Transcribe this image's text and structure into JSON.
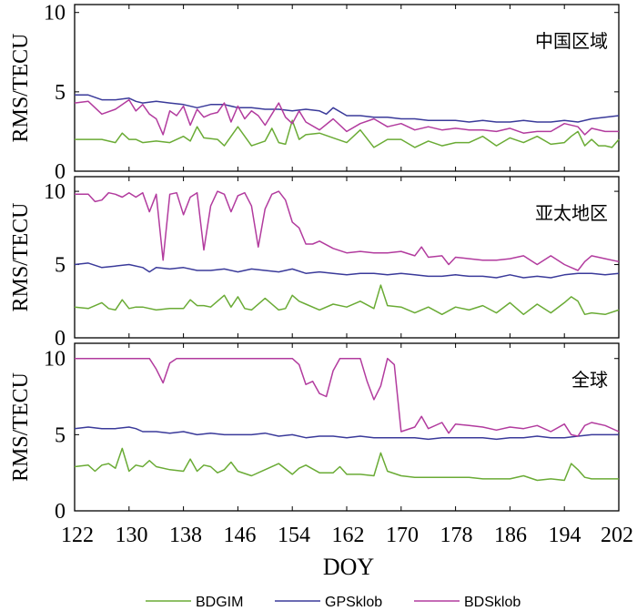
{
  "chart_data": {
    "type": "line",
    "title": "",
    "xlabel": "DOY",
    "xlim": [
      122,
      202
    ],
    "x_ticks": [
      "122",
      "130",
      "138",
      "146",
      "154",
      "162",
      "170",
      "178",
      "186",
      "194",
      "202"
    ],
    "legend": {
      "placement": "bottom",
      "entries": [
        {
          "name": "BDGIM",
          "color": "#6aab35"
        },
        {
          "name": "GPSklob",
          "color": "#3a3a9a"
        },
        {
          "name": "BDSklob",
          "color": "#b23b9e"
        }
      ]
    },
    "panels": [
      {
        "label": "中国区域",
        "ylabel": "RMS/TECU",
        "ylim": [
          0,
          10.5
        ],
        "y_ticks": [
          "10",
          "5",
          "0"
        ],
        "series": [
          {
            "name": "BDGIM",
            "color": "#6aab35",
            "x": [
              122,
              126,
              128,
              129,
              130,
              131,
              132,
              134,
              136,
              138,
              139,
              140,
              141,
              143,
              144,
              146,
              148,
              150,
              151,
              152,
              153,
              154,
              155,
              156,
              158,
              160,
              162,
              164,
              166,
              168,
              170,
              172,
              174,
              176,
              178,
              180,
              182,
              184,
              186,
              188,
              190,
              192,
              194,
              195,
              196,
              197,
              198,
              199,
              200,
              201,
              202
            ],
            "values": [
              2.0,
              2.0,
              1.8,
              2.4,
              2.0,
              2.0,
              1.8,
              1.9,
              1.8,
              2.2,
              1.9,
              2.8,
              2.1,
              2.0,
              1.6,
              2.8,
              1.6,
              1.9,
              2.7,
              1.8,
              1.7,
              3.2,
              2.0,
              2.3,
              2.4,
              2.1,
              1.8,
              2.6,
              1.5,
              2.0,
              2.0,
              1.5,
              1.9,
              1.6,
              1.8,
              1.8,
              2.2,
              1.6,
              2.1,
              1.8,
              2.2,
              1.7,
              1.8,
              2.2,
              2.5,
              1.6,
              2.0,
              1.6,
              1.6,
              1.5,
              2.0
            ]
          },
          {
            "name": "GPSklob",
            "color": "#3a3a9a",
            "x": [
              122,
              124,
              126,
              128,
              130,
              131,
              132,
              134,
              136,
              138,
              140,
              142,
              144,
              146,
              148,
              150,
              152,
              154,
              156,
              158,
              159,
              160,
              162,
              164,
              166,
              168,
              170,
              172,
              174,
              176,
              178,
              180,
              182,
              184,
              186,
              188,
              190,
              192,
              194,
              196,
              198,
              200,
              202
            ],
            "values": [
              4.8,
              4.8,
              4.5,
              4.5,
              4.6,
              4.4,
              4.3,
              4.4,
              4.3,
              4.2,
              4.0,
              4.2,
              4.2,
              4.0,
              4.0,
              3.9,
              3.9,
              3.8,
              3.9,
              3.8,
              3.6,
              4.0,
              3.5,
              3.5,
              3.4,
              3.4,
              3.3,
              3.3,
              3.2,
              3.2,
              3.2,
              3.1,
              3.2,
              3.1,
              3.1,
              3.2,
              3.1,
              3.1,
              3.2,
              3.1,
              3.3,
              3.4,
              3.5
            ]
          },
          {
            "name": "BDSklob",
            "color": "#b23b9e",
            "x": [
              122,
              124,
              126,
              128,
              130,
              131,
              132,
              133,
              134,
              135,
              136,
              137,
              138,
              139,
              140,
              141,
              142,
              143,
              144,
              145,
              146,
              147,
              148,
              149,
              150,
              151,
              152,
              153,
              154,
              155,
              156,
              158,
              160,
              162,
              164,
              166,
              168,
              170,
              172,
              174,
              176,
              178,
              180,
              182,
              184,
              186,
              188,
              190,
              192,
              194,
              196,
              197,
              198,
              200,
              202
            ],
            "values": [
              4.3,
              4.4,
              3.6,
              3.9,
              4.5,
              3.8,
              4.2,
              3.6,
              3.3,
              2.3,
              3.8,
              3.5,
              4.1,
              2.9,
              3.9,
              3.4,
              3.6,
              3.7,
              4.3,
              3.1,
              4.1,
              3.3,
              3.8,
              3.5,
              2.9,
              3.6,
              4.3,
              3.4,
              3.0,
              3.8,
              3.1,
              2.6,
              3.3,
              2.5,
              3.0,
              3.3,
              2.8,
              3.0,
              2.6,
              2.8,
              2.6,
              2.7,
              2.6,
              2.6,
              2.5,
              2.7,
              2.4,
              2.5,
              2.5,
              3.0,
              2.8,
              2.3,
              2.7,
              2.5,
              2.5
            ]
          }
        ]
      },
      {
        "label": "亚太地区",
        "ylabel": "RMS/TECU",
        "ylim": [
          0,
          11
        ],
        "y_ticks": [
          "10",
          "5",
          "0"
        ],
        "series": [
          {
            "name": "BDGIM",
            "color": "#6aab35",
            "x": [
              122,
              124,
              126,
              127,
              128,
              129,
              130,
              131,
              132,
              134,
              136,
              138,
              139,
              140,
              141,
              142,
              144,
              145,
              146,
              147,
              148,
              150,
              152,
              153,
              154,
              155,
              156,
              158,
              160,
              162,
              164,
              166,
              167,
              168,
              170,
              172,
              174,
              176,
              178,
              180,
              182,
              184,
              186,
              188,
              190,
              192,
              194,
              195,
              196,
              197,
              198,
              200,
              202
            ],
            "values": [
              2.1,
              2.0,
              2.4,
              2.0,
              1.9,
              2.6,
              2.0,
              2.1,
              2.1,
              1.9,
              2.0,
              2.0,
              2.6,
              2.2,
              2.2,
              2.1,
              2.9,
              2.1,
              2.8,
              2.0,
              1.9,
              2.7,
              1.9,
              2.0,
              2.9,
              2.5,
              2.3,
              1.9,
              2.3,
              2.1,
              2.5,
              2.0,
              3.6,
              2.2,
              2.1,
              1.7,
              2.1,
              1.6,
              2.1,
              1.9,
              2.2,
              1.7,
              2.4,
              1.6,
              2.3,
              1.7,
              2.4,
              2.8,
              2.5,
              1.6,
              1.7,
              1.6,
              1.9
            ]
          },
          {
            "name": "GPSklob",
            "color": "#3a3a9a",
            "x": [
              122,
              124,
              126,
              128,
              130,
              132,
              133,
              134,
              136,
              138,
              140,
              142,
              144,
              146,
              148,
              150,
              152,
              154,
              156,
              158,
              160,
              162,
              164,
              166,
              168,
              170,
              172,
              174,
              176,
              178,
              180,
              182,
              184,
              186,
              188,
              190,
              192,
              194,
              196,
              198,
              200,
              202
            ],
            "values": [
              5.0,
              5.1,
              4.8,
              4.9,
              5.0,
              4.8,
              4.5,
              4.8,
              4.7,
              4.8,
              4.6,
              4.6,
              4.7,
              4.5,
              4.7,
              4.6,
              4.5,
              4.7,
              4.4,
              4.5,
              4.4,
              4.3,
              4.4,
              4.4,
              4.3,
              4.4,
              4.3,
              4.2,
              4.2,
              4.3,
              4.2,
              4.2,
              4.1,
              4.3,
              4.1,
              4.2,
              4.1,
              4.3,
              4.4,
              4.4,
              4.3,
              4.4
            ]
          },
          {
            "name": "BDSklob",
            "color": "#b23b9e",
            "x": [
              122,
              124,
              125,
              126,
              127,
              128,
              129,
              130,
              131,
              132,
              133,
              134,
              135,
              136,
              137,
              138,
              139,
              140,
              141,
              142,
              143,
              144,
              145,
              146,
              147,
              148,
              149,
              150,
              151,
              152,
              153,
              154,
              155,
              156,
              157,
              158,
              160,
              162,
              164,
              166,
              168,
              170,
              172,
              173,
              174,
              176,
              177,
              178,
              180,
              182,
              184,
              186,
              188,
              190,
              192,
              194,
              195,
              196,
              197,
              198,
              199,
              200,
              202
            ],
            "values": [
              9.8,
              9.8,
              9.3,
              9.4,
              9.9,
              9.8,
              9.6,
              9.9,
              9.6,
              9.9,
              8.6,
              9.8,
              5.3,
              9.8,
              9.9,
              8.4,
              9.6,
              9.9,
              6.0,
              9.0,
              10.0,
              9.8,
              8.6,
              9.7,
              9.9,
              9.0,
              6.2,
              8.8,
              9.8,
              10.0,
              9.4,
              7.9,
              7.5,
              6.4,
              6.4,
              6.6,
              6.1,
              5.8,
              5.9,
              5.8,
              5.8,
              5.9,
              5.6,
              6.2,
              5.5,
              5.6,
              5.0,
              5.5,
              5.4,
              5.3,
              5.3,
              5.4,
              5.6,
              5.0,
              5.6,
              5.0,
              4.8,
              4.6,
              5.2,
              5.6,
              5.5,
              5.4,
              5.2
            ]
          }
        ]
      },
      {
        "label": "全球",
        "ylabel": "RMS/TECU",
        "ylim": [
          0,
          11
        ],
        "y_ticks": [
          "10",
          "5",
          "0"
        ],
        "series": [
          {
            "name": "BDGIM",
            "color": "#6aab35",
            "x": [
              122,
              124,
              125,
              126,
              127,
              128,
              129,
              130,
              131,
              132,
              133,
              134,
              136,
              138,
              139,
              140,
              141,
              142,
              143,
              144,
              145,
              146,
              148,
              150,
              152,
              154,
              155,
              156,
              158,
              160,
              161,
              162,
              164,
              166,
              167,
              168,
              170,
              172,
              174,
              176,
              178,
              180,
              182,
              184,
              186,
              188,
              190,
              192,
              194,
              195,
              196,
              197,
              198,
              200,
              202
            ],
            "values": [
              2.9,
              3.0,
              2.6,
              3.0,
              3.1,
              2.8,
              4.1,
              2.6,
              3.0,
              2.9,
              3.3,
              2.9,
              2.7,
              2.6,
              3.4,
              2.6,
              3.0,
              2.9,
              2.5,
              2.7,
              3.2,
              2.6,
              2.3,
              2.7,
              3.1,
              2.4,
              2.8,
              3.0,
              2.5,
              2.5,
              2.9,
              2.4,
              2.4,
              2.3,
              3.8,
              2.6,
              2.3,
              2.2,
              2.2,
              2.2,
              2.2,
              2.2,
              2.1,
              2.1,
              2.1,
              2.3,
              2.0,
              2.1,
              2.0,
              3.1,
              2.7,
              2.2,
              2.1,
              2.1,
              2.1
            ]
          },
          {
            "name": "GPSklob",
            "color": "#3a3a9a",
            "x": [
              122,
              124,
              126,
              128,
              130,
              131,
              132,
              134,
              136,
              138,
              140,
              142,
              144,
              146,
              148,
              150,
              152,
              154,
              156,
              158,
              160,
              162,
              164,
              166,
              168,
              170,
              172,
              174,
              176,
              178,
              180,
              182,
              184,
              186,
              188,
              190,
              192,
              194,
              196,
              198,
              200,
              202
            ],
            "values": [
              5.4,
              5.5,
              5.4,
              5.4,
              5.5,
              5.4,
              5.2,
              5.2,
              5.1,
              5.2,
              5.0,
              5.1,
              5.0,
              5.0,
              5.0,
              5.1,
              4.9,
              5.0,
              4.8,
              4.9,
              4.9,
              4.8,
              4.9,
              4.8,
              4.8,
              4.8,
              4.8,
              4.7,
              4.8,
              4.8,
              4.8,
              4.8,
              4.7,
              4.8,
              4.8,
              4.9,
              4.8,
              4.8,
              4.9,
              5.0,
              5.0,
              5.0
            ]
          },
          {
            "name": "BDSklob",
            "color": "#b23b9e",
            "x": [
              122,
              133,
              134,
              135,
              136,
              137,
              138,
              154,
              155,
              156,
              157,
              158,
              159,
              160,
              161,
              162,
              163,
              164,
              165,
              166,
              167,
              168,
              169,
              170,
              172,
              173,
              174,
              176,
              177,
              178,
              180,
              182,
              184,
              186,
              188,
              190,
              192,
              194,
              195,
              196,
              197,
              198,
              200,
              202
            ],
            "values": [
              10.0,
              10.0,
              9.3,
              8.4,
              9.7,
              10.0,
              10.0,
              10.0,
              9.6,
              8.3,
              8.5,
              7.7,
              7.5,
              9.2,
              10.0,
              10.0,
              10.0,
              10.0,
              8.5,
              7.3,
              8.2,
              10.0,
              9.6,
              5.2,
              5.5,
              6.2,
              5.4,
              5.8,
              5.1,
              5.7,
              5.6,
              5.5,
              5.3,
              5.5,
              5.4,
              5.6,
              5.2,
              5.7,
              5.0,
              4.9,
              5.6,
              5.8,
              5.6,
              5.2
            ]
          }
        ]
      }
    ]
  }
}
